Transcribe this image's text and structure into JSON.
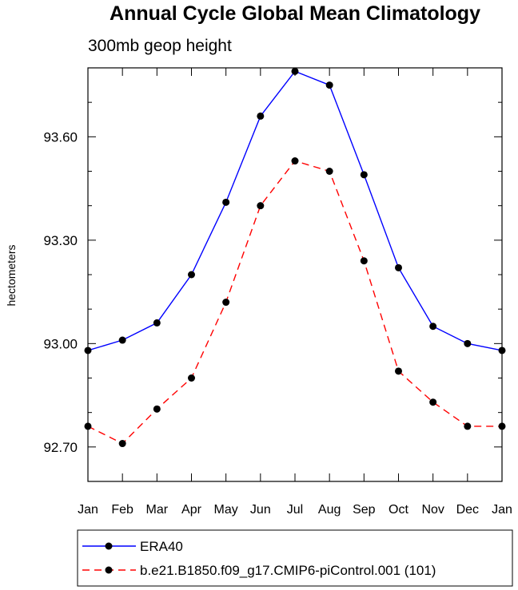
{
  "chart_data": {
    "type": "line",
    "title": "Annual Cycle Global Mean Climatology",
    "subtitle": "300mb geop height",
    "xlabel": "",
    "ylabel": "hectometers",
    "categories": [
      "Jan",
      "Feb",
      "Mar",
      "Apr",
      "May",
      "Jun",
      "Jul",
      "Aug",
      "Sep",
      "Oct",
      "Nov",
      "Dec",
      "Jan"
    ],
    "ylim": [
      92.6,
      93.8
    ],
    "yticks": [
      92.7,
      93.0,
      93.3,
      93.6
    ],
    "ytick_labels": [
      "92.70",
      "93.00",
      "93.30",
      "93.60"
    ],
    "series": [
      {
        "name": "ERA40",
        "color": "#0000ff",
        "dash": "solid",
        "values": [
          92.98,
          93.01,
          93.06,
          93.2,
          93.41,
          93.66,
          93.79,
          93.75,
          93.49,
          93.22,
          93.05,
          93.0,
          92.98
        ]
      },
      {
        "name": "b.e21.B1850.f09_g17.CMIP6-piControl.001 (101)",
        "color": "#ff0000",
        "dash": "dashed",
        "values": [
          92.76,
          92.71,
          92.81,
          92.9,
          93.12,
          93.4,
          93.53,
          93.5,
          93.24,
          92.92,
          92.83,
          92.76,
          92.76
        ]
      }
    ],
    "legend": "bottom",
    "grid": false
  }
}
